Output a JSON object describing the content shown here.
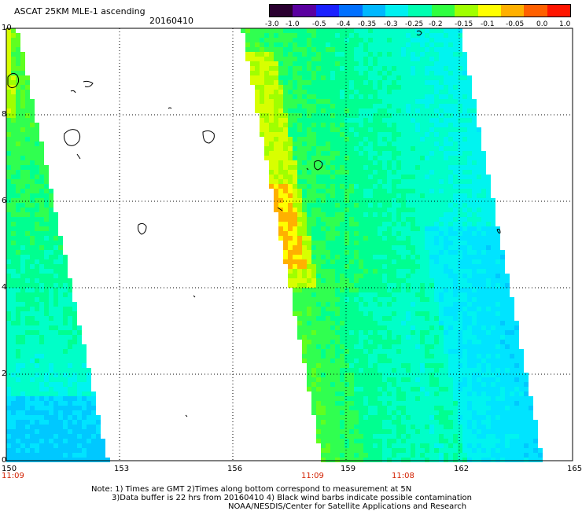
{
  "header": {
    "title": "ASCAT 25KM MLE-1 ascending",
    "date": "20160410"
  },
  "colorbar": {
    "labels": [
      "-3.0",
      "-1.0",
      "-0.5",
      "-0.4",
      "-0.35",
      "-0.3",
      "-0.25",
      "-0.2",
      "-0.15",
      "-0.1",
      "-0.05",
      "0.0",
      "1.0"
    ],
    "colors": [
      "#2a0030",
      "#5a00a0",
      "#1a20ff",
      "#0070ff",
      "#00b8ff",
      "#00f0f0",
      "#00ffb0",
      "#30ff40",
      "#a0ff00",
      "#ffff00",
      "#ffb000",
      "#ff6000",
      "#ff1500"
    ]
  },
  "axes": {
    "lon_labels": [
      "150",
      "153",
      "156",
      "159",
      "162",
      "165"
    ],
    "lat_labels": [
      "0",
      "2",
      "4",
      "6",
      "8",
      "10"
    ]
  },
  "swath_times": [
    "11:09",
    "11:09",
    "11:08"
  ],
  "notes": [
    "Note: 1) Times are GMT 2)Times along bottom correspond to measurement at 5N",
    "3)Data buffer is 22 hrs from 20160410 4) Black wind barbs indicate possible contamination",
    "NOAA/NESDIS/Center for Satellite Applications and Research"
  ]
}
